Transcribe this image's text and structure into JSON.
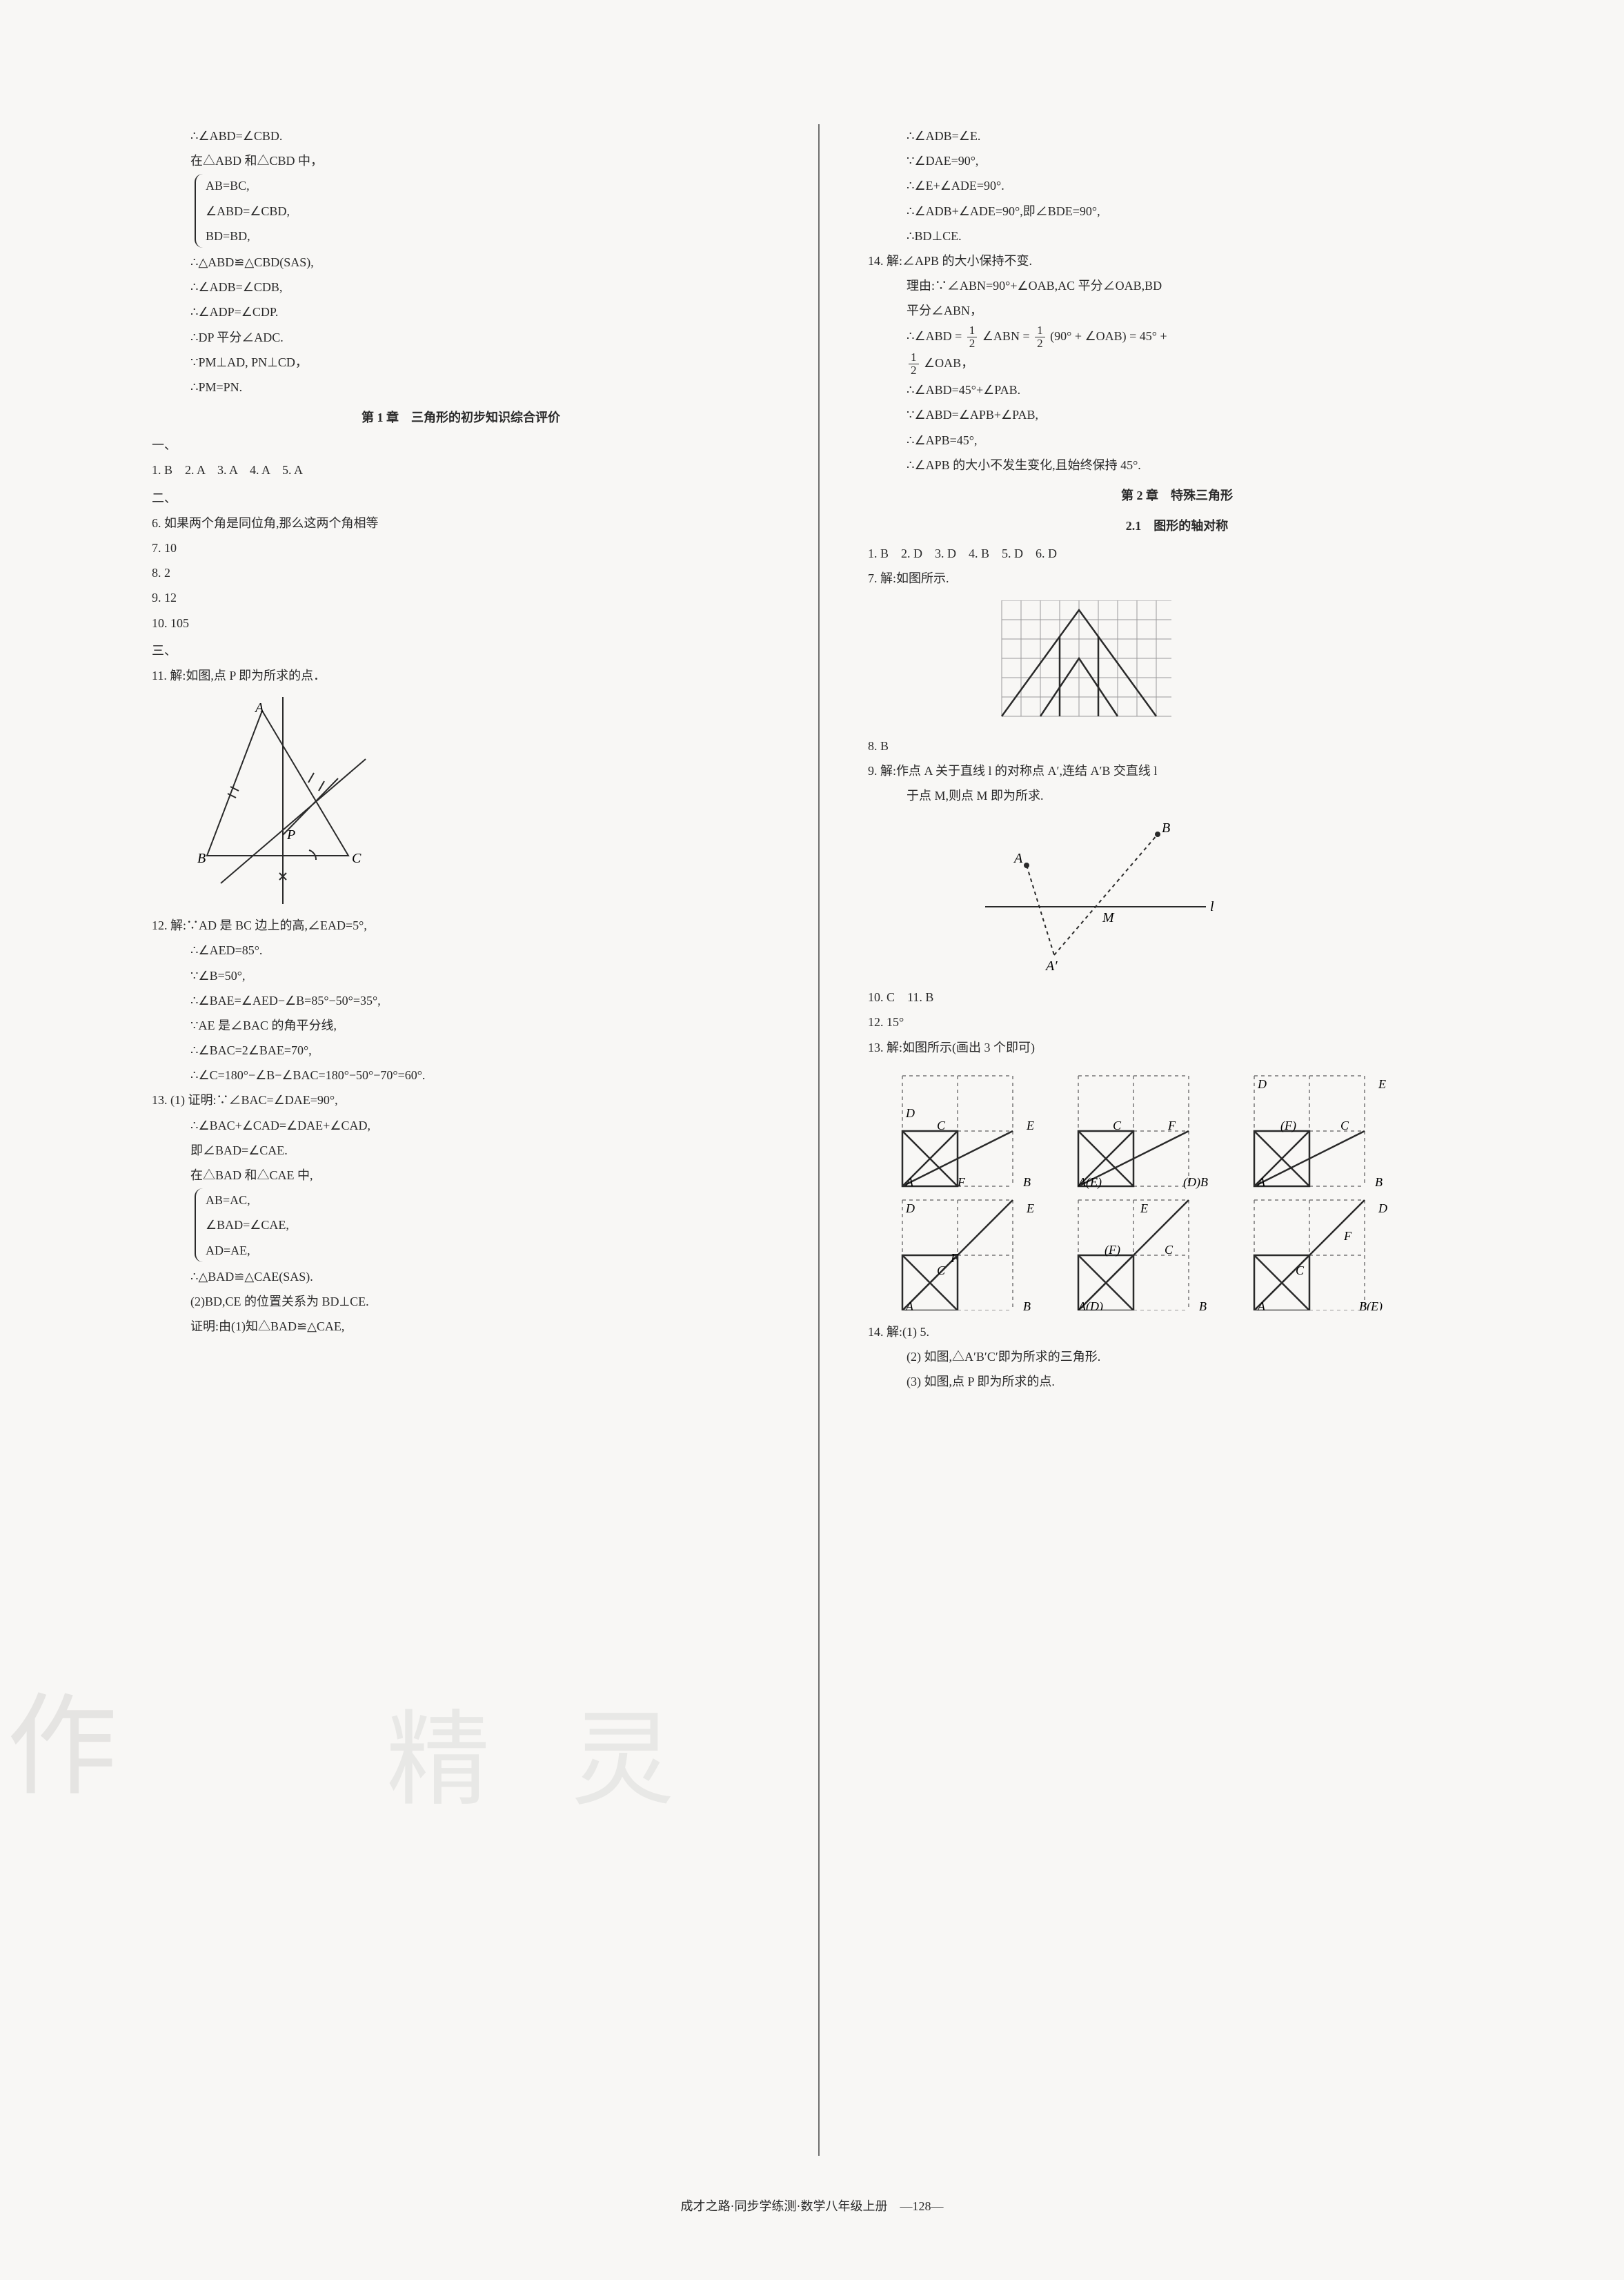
{
  "left": {
    "l1": "∴∠ABD=∠CBD.",
    "l2": "在△ABD 和△CBD 中，",
    "brace1a": "AB=BC,",
    "brace1b": "∠ABD=∠CBD,",
    "brace1c": "BD=BD,",
    "l3": "∴△ABD≌△CBD(SAS),",
    "l4": "∴∠ADB=∠CDB,",
    "l5": "∴∠ADP=∠CDP.",
    "l6": "∴DP 平分∠ADC.",
    "l7": "∵PM⊥AD, PN⊥CD，",
    "l8": "∴PM=PN.",
    "heading1": "第 1 章　三角形的初步知识综合评价",
    "sec1": "一、",
    "a1": "1. B　2. A　3. A　4. A　5. A",
    "sec2": "二、",
    "a6": "6. 如果两个角是同位角,那么这两个角相等",
    "a7": "7. 10",
    "a8": "8. 2",
    "a9": "9. 12",
    "a10": "10. 105",
    "sec3": "三、",
    "a11": "11. 解:如图,点 P 即为所求的点．",
    "fig11": {
      "type": "diagram",
      "stroke": "#2a2a2a",
      "stroke_width": 2,
      "labels": {
        "A": "A",
        "B": "B",
        "C": "C",
        "P": "P"
      }
    },
    "a12": "12. 解:∵AD 是 BC 边上的高,∠EAD=5°,",
    "a12b": "∴∠AED=85°.",
    "a12c": "∵∠B=50°,",
    "a12d": "∴∠BAE=∠AED−∠B=85°−50°=35°,",
    "a12e": "∵AE 是∠BAC 的角平分线,",
    "a12f": "∴∠BAC=2∠BAE=70°,",
    "a12g": "∴∠C=180°−∠B−∠BAC=180°−50°−70°=60°.",
    "a13": "13. (1) 证明:∵∠BAC=∠DAE=90°,",
    "a13b": "∴∠BAC+∠CAD=∠DAE+∠CAD,",
    "a13c": "即∠BAD=∠CAE.",
    "a13d": "在△BAD 和△CAE 中,",
    "brace2a": "AB=AC,",
    "brace2b": "∠BAD=∠CAE,",
    "brace2c": "AD=AE,",
    "a13e": "∴△BAD≌△CAE(SAS).",
    "a13f": "(2)BD,CE 的位置关系为 BD⊥CE.",
    "a13g": "证明:由(1)知△BAD≌△CAE,"
  },
  "right": {
    "l1": "∴∠ADB=∠E.",
    "l2": "∵∠DAE=90°,",
    "l3": "∴∠E+∠ADE=90°.",
    "l4": "∴∠ADB+∠ADE=90°,即∠BDE=90°,",
    "l5": "∴BD⊥CE.",
    "a14": "14. 解:∠APB 的大小保持不变.",
    "a14b": "理由:∵∠ABN=90°+∠OAB,AC 平分∠OAB,BD",
    "a14c": "平分∠ABN，",
    "a14d_pre": "∴∠ABD = ",
    "a14d_mid": " ∠ABN = ",
    "a14d_post": " (90° + ∠OAB) = 45° +",
    "a14e_post": " ∠OAB，",
    "a14f": "∴∠ABD=45°+∠PAB.",
    "a14g": "∵∠ABD=∠APB+∠PAB,",
    "a14h": "∴∠APB=45°,",
    "a14i": "∴∠APB 的大小不发生变化,且始终保持 45°.",
    "heading2": "第 2 章　特殊三角形",
    "heading2b": "2.1　图形的轴对称",
    "b1": "1. B　2. D　3. D　4. B　5. D　6. D",
    "b7": "7. 解:如图所示.",
    "fig7": {
      "type": "diagram",
      "grid_cols": 9,
      "grid_rows": 6,
      "cell": 28,
      "grid_color": "#9a9a9a",
      "stroke": "#2a2a2a"
    },
    "b8": "8. B",
    "b9": "9. 解:作点 A 关于直线 l 的对称点 A′,连结 A′B 交直线 l",
    "b9b": "于点 M,则点 M 即为所求.",
    "fig9": {
      "type": "diagram",
      "stroke": "#2a2a2a",
      "labels": {
        "A": "A",
        "Ap": "A′",
        "B": "B",
        "M": "M",
        "l": "l"
      }
    },
    "b10": "10. C　11. B",
    "b12": "12. 15°",
    "b13": "13. 解:如图所示(画出 3 个即可)",
    "fig13": {
      "type": "diagram-grid",
      "dash_color": "#777",
      "stroke": "#2a2a2a",
      "panels": [
        "DCEF_AFB",
        "CF_AE_DB",
        "DE_FC_AB",
        "DE_FC_AB2",
        "E_FC_AD_B",
        "D_F_C_A_BE"
      ]
    },
    "b14": "14. 解:(1) 5.",
    "b14b": "(2) 如图,△A′B′C′即为所求的三角形.",
    "b14c": "(3) 如图,点 P 即为所求的点."
  },
  "footer_text": "成才之路·同步学练测·数学八年级上册　—128—",
  "watermark1": "作",
  "watermark2": "精 灵",
  "colors": {
    "text": "#2a2a2a",
    "bg": "#f8f7f5",
    "grid": "#9a9a9a",
    "dash": "#777777"
  },
  "fontsize_body": 18
}
